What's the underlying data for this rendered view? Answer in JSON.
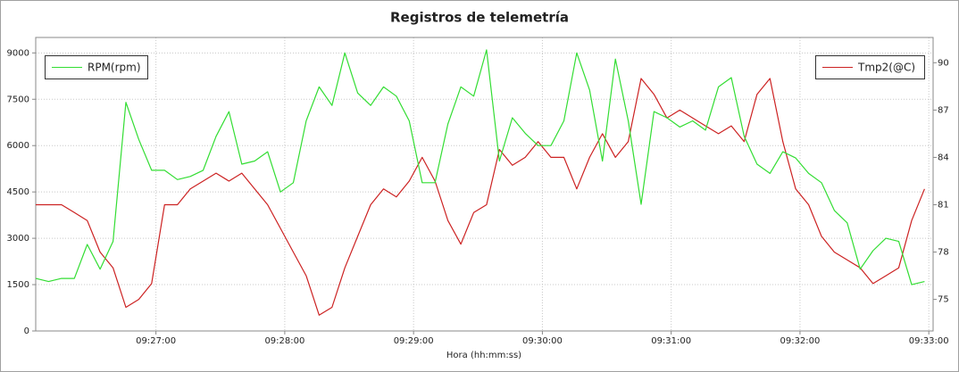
{
  "chart_data": {
    "type": "line",
    "title": "Registros de telemetría",
    "x_label": "Hora (hh:mm:ss)",
    "x": [
      "09:26:04",
      "09:26:10",
      "09:26:16",
      "09:26:22",
      "09:26:28",
      "09:26:34",
      "09:26:40",
      "09:26:46",
      "09:26:52",
      "09:26:58",
      "09:27:04",
      "09:27:10",
      "09:27:16",
      "09:27:22",
      "09:27:28",
      "09:27:34",
      "09:27:40",
      "09:27:46",
      "09:27:52",
      "09:27:58",
      "09:28:04",
      "09:28:10",
      "09:28:16",
      "09:28:22",
      "09:28:28",
      "09:28:34",
      "09:28:40",
      "09:28:46",
      "09:28:52",
      "09:28:58",
      "09:29:04",
      "09:29:10",
      "09:29:16",
      "09:29:22",
      "09:29:28",
      "09:29:34",
      "09:29:40",
      "09:29:46",
      "09:29:52",
      "09:29:58",
      "09:30:04",
      "09:30:10",
      "09:30:16",
      "09:30:22",
      "09:30:28",
      "09:30:34",
      "09:30:40",
      "09:30:46",
      "09:30:52",
      "09:30:58",
      "09:31:04",
      "09:31:10",
      "09:31:16",
      "09:31:22",
      "09:31:28",
      "09:31:34",
      "09:31:40",
      "09:31:46",
      "09:31:52",
      "09:31:58",
      "09:32:04",
      "09:32:10",
      "09:32:16",
      "09:32:22",
      "09:32:28",
      "09:32:34",
      "09:32:40",
      "09:32:46",
      "09:32:52",
      "09:32:58"
    ],
    "xlim": [
      "09:26:04",
      "09:33:02"
    ],
    "xticks": [
      "09:27:00",
      "09:28:00",
      "09:29:00",
      "09:30:00",
      "09:31:00",
      "09:32:00",
      "09:33:00"
    ],
    "ylim": [
      0,
      9500
    ],
    "yticks": [
      0,
      1500,
      3000,
      4500,
      6000,
      7500,
      9000
    ],
    "y2lim": [
      73,
      91.6
    ],
    "y2ticks": [
      75,
      78,
      81,
      84,
      87,
      90
    ],
    "grid": true,
    "series": [
      {
        "name": "RPM(rpm)",
        "color": "#33dd33",
        "values": [
          1700,
          1600,
          1700,
          1700,
          2800,
          2000,
          2900,
          7400,
          6200,
          5200,
          5200,
          4900,
          5000,
          5200,
          6300,
          7100,
          5400,
          5500,
          5800,
          4500,
          4800,
          6800,
          7900,
          7300,
          9000,
          7700,
          7300,
          7900,
          7600,
          6800,
          4800,
          4800,
          6700,
          7900,
          7600,
          9100,
          5500,
          6900,
          6400,
          6000,
          6000,
          6800,
          9000,
          7800,
          5500,
          8800,
          6800,
          4100,
          7100,
          6900,
          6600,
          6800,
          6500,
          7900,
          8200,
          6300,
          5400,
          5100,
          5800,
          5600,
          5100,
          4800,
          3900,
          3500,
          2000,
          2600,
          3000,
          2900,
          1500,
          1600
        ]
      },
      {
        "name": "Tmp2(@C)",
        "color": "#cc2222",
        "axis": "y2",
        "values": [
          81,
          81,
          81,
          80.5,
          80,
          78,
          77,
          74.5,
          75,
          76,
          81,
          81,
          82,
          82.5,
          83,
          82.5,
          83,
          82,
          81,
          79.5,
          78,
          76.5,
          74,
          74.5,
          77,
          79,
          81,
          82,
          81.5,
          82.5,
          84,
          82.5,
          80,
          78.5,
          80.5,
          81,
          84.5,
          83.5,
          84,
          85,
          84,
          84,
          82,
          84,
          85.5,
          84,
          85,
          89,
          88,
          86.5,
          87,
          86.5,
          86,
          85.5,
          86,
          85,
          88,
          89,
          85,
          82,
          81,
          79,
          78,
          77.5,
          77,
          76,
          76.5,
          77,
          80,
          82
        ]
      }
    ]
  }
}
